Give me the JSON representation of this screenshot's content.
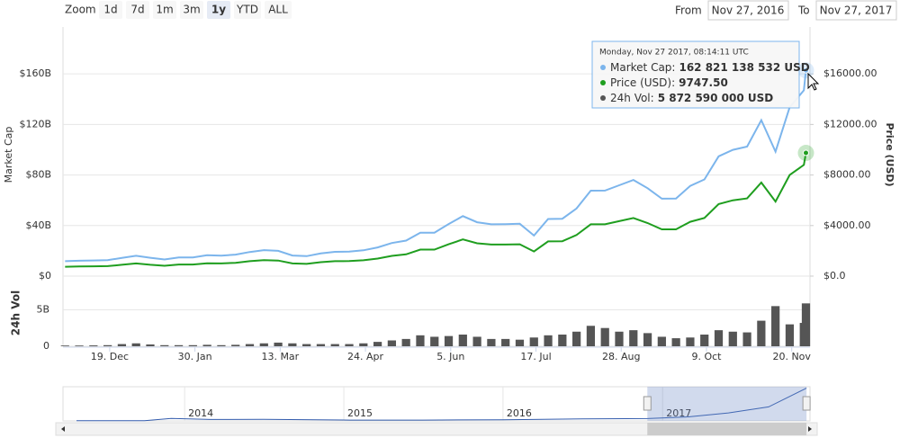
{
  "chart_data": {
    "type": "line",
    "zoom_label": "Zoom",
    "zoom_buttons": [
      "1d",
      "7d",
      "1m",
      "3m",
      "1y",
      "YTD",
      "ALL"
    ],
    "selected_zoom": "1y",
    "from_label": "From",
    "from_value": "Nov 27, 2016",
    "to_label": "To",
    "to_value": "Nov 27, 2017",
    "y_label": "Market Cap",
    "y2_label": "Price (USD)",
    "vol_label": "24h Vol",
    "x": [
      "2016-11-27",
      "2016-12-04",
      "2016-12-11",
      "2016-12-18",
      "2016-12-25",
      "2017-01-01",
      "2017-01-08",
      "2017-01-15",
      "2017-01-22",
      "2017-01-29",
      "2017-02-05",
      "2017-02-12",
      "2017-02-19",
      "2017-02-26",
      "2017-03-05",
      "2017-03-12",
      "2017-03-19",
      "2017-03-26",
      "2017-04-02",
      "2017-04-09",
      "2017-04-16",
      "2017-04-23",
      "2017-04-30",
      "2017-05-07",
      "2017-05-14",
      "2017-05-21",
      "2017-05-28",
      "2017-06-04",
      "2017-06-11",
      "2017-06-18",
      "2017-06-25",
      "2017-07-02",
      "2017-07-09",
      "2017-07-16",
      "2017-07-23",
      "2017-07-30",
      "2017-08-06",
      "2017-08-13",
      "2017-08-20",
      "2017-08-27",
      "2017-09-03",
      "2017-09-10",
      "2017-09-17",
      "2017-09-24",
      "2017-10-01",
      "2017-10-08",
      "2017-10-15",
      "2017-10-22",
      "2017-10-29",
      "2017-11-05",
      "2017-11-12",
      "2017-11-19",
      "2017-11-26",
      "2017-11-27"
    ],
    "xlim": [
      "2016-11-26",
      "2017-11-29"
    ],
    "xticks": [
      {
        "value": "2016-12-19",
        "label": "19. Dec"
      },
      {
        "value": "2017-01-30",
        "label": "30. Jan"
      },
      {
        "value": "2017-03-13",
        "label": "13. Mar"
      },
      {
        "value": "2017-04-24",
        "label": "24. Apr"
      },
      {
        "value": "2017-06-05",
        "label": "5. Jun"
      },
      {
        "value": "2017-07-17",
        "label": "17. Jul"
      },
      {
        "value": "2017-08-28",
        "label": "28. Aug"
      },
      {
        "value": "2017-10-09",
        "label": "9. Oct"
      },
      {
        "value": "2017-11-20",
        "label": "20. Nov"
      }
    ],
    "ylim": [
      0,
      190000000000
    ],
    "yticks": [
      {
        "value": 0,
        "label": "$0"
      },
      {
        "value": 40000000000,
        "label": "$40B"
      },
      {
        "value": 80000000000,
        "label": "$80B"
      },
      {
        "value": 120000000000,
        "label": "$120B"
      },
      {
        "value": 160000000000,
        "label": "$160B"
      }
    ],
    "y2lim": [
      0,
      19000
    ],
    "y2ticks": [
      {
        "value": 0,
        "label": "$0.0"
      },
      {
        "value": 4000,
        "label": "$4000.00"
      },
      {
        "value": 8000,
        "label": "$8000.00"
      },
      {
        "value": 12000,
        "label": "$12000.00"
      },
      {
        "value": 16000,
        "label": "$16000.00"
      }
    ],
    "vol_ylim": [
      0,
      8500000000
    ],
    "vol_yticks": [
      0,
      {
        "value": 5000000000,
        "label": "5B"
      }
    ],
    "grid": true,
    "series": [
      {
        "name": "Market Cap",
        "color": "#7cb5ec",
        "axis": "y",
        "values": [
          11800000000.0,
          12200000000.0,
          12400000000.0,
          12700000000.0,
          14400000000.0,
          16100000000.0,
          14500000000.0,
          13200000000.0,
          14800000000.0,
          14800000000.0,
          16500000000.0,
          16200000000.0,
          17000000000.0,
          19100000000.0,
          20600000000.0,
          20000000000.0,
          16300000000.0,
          15800000000.0,
          17900000000.0,
          19200000000.0,
          19400000000.0,
          20400000000.0,
          22700000000.0,
          26200000000.0,
          28100000000.0,
          34300000000.0,
          34400000000.0,
          41200000000.0,
          47500000000.0,
          42600000000.0,
          41000000000.0,
          41100000000.0,
          41400000000.0,
          32100000000.0,
          45200000000.0,
          45400000000.0,
          53500000000.0,
          67600000000.0,
          67700000000.0,
          71900000000.0,
          76100000000.0,
          69500000000.0,
          61300000000.0,
          61400000000.0,
          71400000000.0,
          76500000000.0,
          94800000000.0,
          99900000000.0,
          102500000000.0,
          123400000000.0,
          98500000000.0,
          133600000000.0,
          147000000000.0,
          162821138532
        ]
      },
      {
        "name": "Price (USD)",
        "color": "#1f9e1f",
        "axis": "y2",
        "values": [
          740,
          765,
          775,
          790,
          900,
          1000,
          900,
          820,
          920,
          920,
          1020,
          1000,
          1050,
          1180,
          1270,
          1230,
          1000,
          970,
          1100,
          1180,
          1190,
          1250,
          1390,
          1600,
          1720,
          2100,
          2100,
          2520,
          2900,
          2600,
          2500,
          2500,
          2520,
          1950,
          2750,
          2760,
          3250,
          4100,
          4100,
          4350,
          4600,
          4200,
          3700,
          3700,
          4300,
          4600,
          5700,
          6000,
          6150,
          7400,
          5900,
          8000,
          8800,
          9747.5
        ]
      },
      {
        "name": "24h Vol",
        "color": "#555555",
        "axis": "vol",
        "values": [
          100000000.0,
          100000000.0,
          120000000.0,
          150000000.0,
          300000000.0,
          400000000.0,
          250000000.0,
          150000000.0,
          150000000.0,
          150000000.0,
          200000000.0,
          150000000.0,
          200000000.0,
          300000000.0,
          400000000.0,
          500000000.0,
          400000000.0,
          300000000.0,
          300000000.0,
          300000000.0,
          300000000.0,
          400000000.0,
          600000000.0,
          800000000.0,
          1000000000.0,
          1500000000.0,
          1300000000.0,
          1400000000.0,
          1600000000.0,
          1300000000.0,
          1000000000.0,
          1000000000.0,
          900000000.0,
          1200000000.0,
          1500000000.0,
          1600000000.0,
          2000000000.0,
          2800000000.0,
          2500000000.0,
          2000000000.0,
          2200000000.0,
          1800000000.0,
          1300000000.0,
          1100000000.0,
          1200000000.0,
          1600000000.0,
          2200000000.0,
          2000000000.0,
          1900000000.0,
          3500000000.0,
          5500000000.0,
          3000000000.0,
          3200000000.0,
          5872590000
        ]
      }
    ],
    "tooltip": {
      "title": "Monday, Nov 27 2017, 08:14:11 UTC",
      "items": [
        {
          "label": "Market Cap:",
          "text": "162 821 138 532 USD"
        },
        {
          "label": "Price (USD):",
          "text": "9747.50"
        },
        {
          "label": "24h Vol:",
          "text": "5 872 590 000 USD"
        }
      ]
    },
    "navigator": {
      "xlim": [
        "2013-03-28",
        "2017-12-05"
      ],
      "xticks": [
        {
          "value": "2014-01-01",
          "label": "2014"
        },
        {
          "value": "2015-01-01",
          "label": "2015"
        },
        {
          "value": "2016-01-01",
          "label": "2016"
        },
        {
          "value": "2017-01-01",
          "label": "2017"
        }
      ],
      "ylim": [
        0,
        170000000000
      ],
      "x": [
        "2013-04-28",
        "2013-10-01",
        "2013-12-01",
        "2014-03-01",
        "2014-07-01",
        "2015-01-15",
        "2015-07-01",
        "2016-01-01",
        "2016-07-01",
        "2016-11-27",
        "2017-03-01",
        "2017-06-01",
        "2017-09-01",
        "2017-11-27"
      ],
      "values": [
        1500000000.0,
        1500000000.0,
        12000000000.0,
        7000000000.0,
        8000000000.0,
        4000000000.0,
        4000000000.0,
        6000000000.0,
        10000000000.0,
        11800000000.0,
        20000000000.0,
        40000000000.0,
        70000000000.0,
        162821138532
      ]
    }
  }
}
